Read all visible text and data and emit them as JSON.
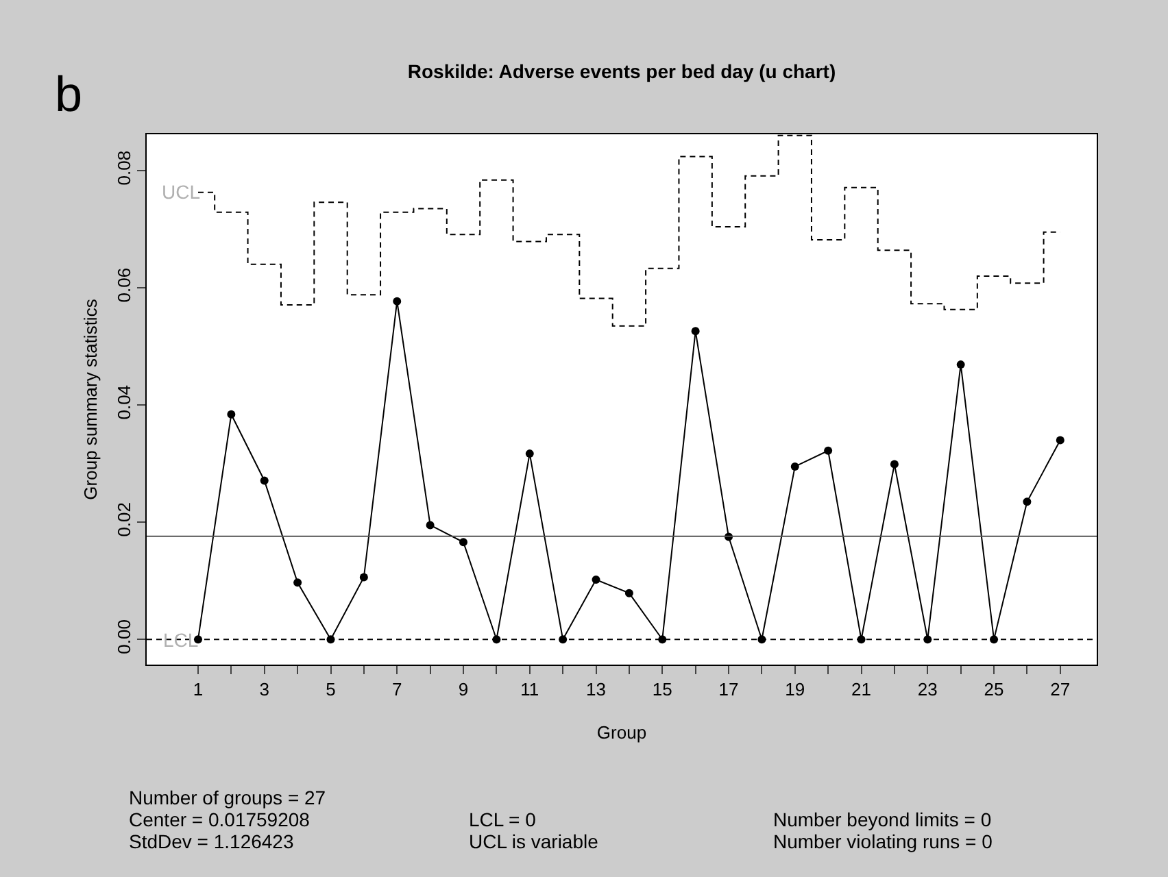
{
  "chart_data": {
    "type": "line",
    "title": "Roskilde: Adverse events per bed day (u chart)",
    "xlabel": "Group",
    "ylabel": "Group summary statistics",
    "x": [
      1,
      2,
      3,
      4,
      5,
      6,
      7,
      8,
      9,
      10,
      11,
      12,
      13,
      14,
      15,
      16,
      17,
      18,
      19,
      20,
      21,
      22,
      23,
      24,
      25,
      26,
      27
    ],
    "series": [
      {
        "color": "#000000",
        "marker": "circle",
        "line_style": "solid",
        "values": [
          0,
          0.0384,
          0.0271,
          0.0097,
          0,
          0.0106,
          0.0577,
          0.0195,
          0.0166,
          0,
          0.0317,
          0,
          0.0102,
          0.0079,
          0,
          0.0526,
          0.0175,
          0,
          0.0295,
          0.0322,
          0,
          0.0299,
          0,
          0.0469,
          0,
          0.0235,
          0.034
        ]
      },
      {
        "type": "step",
        "name": "UCL",
        "color": "#000000",
        "marker": "none",
        "line_style": "dashed",
        "values": [
          0.0763,
          0.0729,
          0.064,
          0.0571,
          0.0746,
          0.0588,
          0.0729,
          0.0735,
          0.0691,
          0.0784,
          0.0679,
          0.0691,
          0.0582,
          0.0535,
          0.0633,
          0.0824,
          0.0704,
          0.0791,
          0.086,
          0.0682,
          0.0771,
          0.0664,
          0.0573,
          0.0563,
          0.062,
          0.0608,
          0.0695
        ]
      }
    ],
    "ref_lines": [
      {
        "axis": "y",
        "value": 0.01759208,
        "color": "#555555",
        "line_style": "solid"
      },
      {
        "axis": "y",
        "value": 0,
        "label": "LCL",
        "color": "#000000",
        "line_style": "dashed"
      }
    ],
    "xlim": [
      -0.55,
      28.1
    ],
    "xticks": [
      1,
      {
        "value": 2,
        "label": null
      },
      3,
      {
        "value": 4,
        "label": null
      },
      5,
      {
        "value": 6,
        "label": null
      },
      7,
      {
        "value": 8,
        "label": null
      },
      9,
      {
        "value": 10,
        "label": null
      },
      11,
      {
        "value": 12,
        "label": null
      },
      13,
      {
        "value": 14,
        "label": null
      },
      15,
      {
        "value": 16,
        "label": null
      },
      17,
      {
        "value": 18,
        "label": null
      },
      19,
      {
        "value": 20,
        "label": null
      },
      21,
      {
        "value": 22,
        "label": null
      },
      23,
      {
        "value": 24,
        "label": null
      },
      25,
      {
        "value": 26,
        "label": null
      },
      27
    ],
    "ylim": [
      -0.0043,
      0.0862
    ],
    "yticks": [
      {
        "value": 0,
        "label": "0.00"
      },
      {
        "value": 0.02,
        "label": "0.02"
      },
      {
        "value": 0.04,
        "label": "0.04"
      },
      {
        "value": 0.06,
        "label": "0.06"
      },
      {
        "value": 0.08,
        "label": "0.08"
      }
    ],
    "grid": false,
    "legend": false,
    "annotations": [
      "b",
      "Number of groups = 27",
      "Center = 0.01759208",
      "StdDev = 1.126423",
      "LCL = 0",
      "UCL is variable",
      "Number beyond limits = 0",
      "Number violating runs = 0"
    ]
  }
}
